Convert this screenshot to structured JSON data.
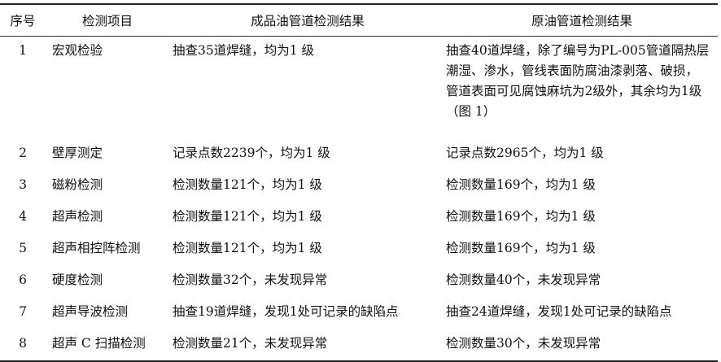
{
  "table": {
    "headers": [
      "序号",
      "检测项目",
      "成品油管道检测结果",
      "原油管道检测结果"
    ],
    "rows": [
      {
        "no": "1",
        "item": "宏观检验",
        "product": "抽查35道焊缝，均为1 级",
        "crude": "抽查40道焊缝，除了编号为PL-005管道隔热层潮湿、渗水，管线表面防腐油漆剥落、破损，管道表面可见腐蚀麻坑为2级外，其余均为1级（图 1）"
      },
      {
        "no": "2",
        "item": "壁厚测定",
        "product": "记录点数2239个，均为1 级",
        "crude": "记录点数2965个，均为1 级"
      },
      {
        "no": "3",
        "item": "磁粉检测",
        "product": "检测数量121个，均为1 级",
        "crude": "检测数量169个，均为1 级"
      },
      {
        "no": "4",
        "item": "超声检测",
        "product": "检测数量121个，均为1 级",
        "crude": "检测数量169个，均为1 级"
      },
      {
        "no": "5",
        "item": "超声相控阵检测",
        "product": "检测数量121个，均为1 级",
        "crude": "检测数量169个，均为1 级"
      },
      {
        "no": "6",
        "item": "硬度检测",
        "product": "检测数量32个，未发现异常",
        "crude": "检测数量40个，未发现异常"
      },
      {
        "no": "7",
        "item": "超声导波检测",
        "product": "抽查19道焊缝，发现1处可记录的缺陷点",
        "crude": "抽查24道焊缝，发现1处可记录的缺陷点"
      },
      {
        "no": "8",
        "item": "超声 C 扫描检测",
        "product": "检测数量21个，未发现异常",
        "crude": "检测数量30个，未发现异常"
      }
    ]
  }
}
